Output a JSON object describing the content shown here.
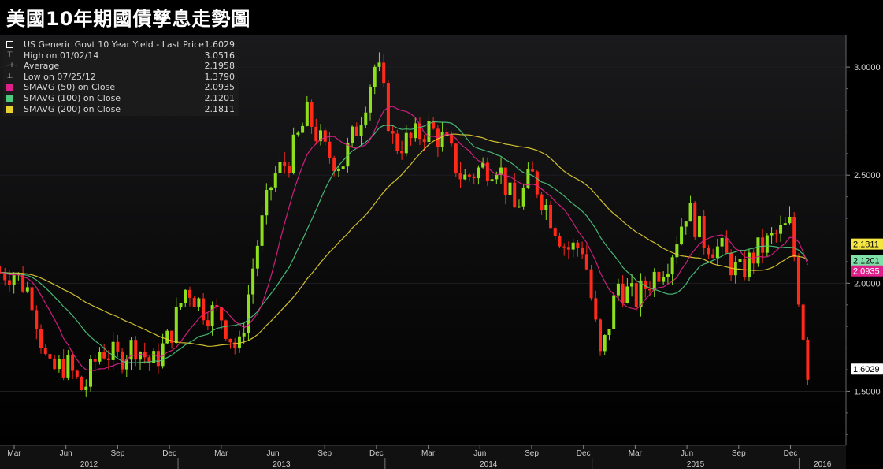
{
  "title": "美國10年期國債孳息走勢圖",
  "legend": [
    {
      "label": "US Generic Govt 10 Year Yield - Last Price",
      "value": "1.6029",
      "icon": "square-outline-icon",
      "color": "#ffffff"
    },
    {
      "label": "High on 01/02/14",
      "value": "3.0516",
      "icon": "high-marker-icon",
      "color": "#aaaaaa"
    },
    {
      "label": "Average",
      "value": "2.1958",
      "icon": "average-marker-icon",
      "color": "#aaaaaa"
    },
    {
      "label": "Low on 07/25/12",
      "value": "1.3790",
      "icon": "low-marker-icon",
      "color": "#aaaaaa"
    },
    {
      "label": "SMAVG (50) on Close",
      "value": "2.0935",
      "icon": "swatch-icon",
      "color": "#e0208a"
    },
    {
      "label": "SMAVG (100) on Close",
      "value": "2.1201",
      "icon": "swatch-icon",
      "color": "#4ec97f"
    },
    {
      "label": "SMAVG (200) on Close",
      "value": "2.1811",
      "icon": "swatch-icon",
      "color": "#e6d230"
    }
  ],
  "price_tags": [
    {
      "value": "2.1811",
      "bg": "#f5e642",
      "fg": "#000000"
    },
    {
      "value": "2.1201",
      "bg": "#7fe0a8",
      "fg": "#000000"
    },
    {
      "value": "2.0935",
      "bg": "#e0208a",
      "fg": "#ffffff"
    },
    {
      "value": "1.6029",
      "bg": "#ffffff",
      "fg": "#000000"
    }
  ],
  "chart_data": {
    "type": "candlestick",
    "x_start": "2012-03",
    "x_end": "2016-01",
    "y_range": [
      1.25,
      3.15
    ],
    "y_ticks": [
      "3.0000",
      "2.5000",
      "2.0000",
      "1.5000"
    ],
    "month_ticks": [
      "Mar",
      "Jun",
      "Sep",
      "Dec",
      "Mar",
      "Jun",
      "Sep",
      "Dec",
      "Mar",
      "Jun",
      "Sep",
      "Dec",
      "Mar",
      "Jun",
      "Sep",
      "Dec"
    ],
    "years": [
      "2012",
      "2013",
      "2014",
      "2015",
      "2016"
    ],
    "up_color": "#8ee01c",
    "down_color": "#ff2a1a",
    "close_monthly": [
      [
        "2012-03",
        2.05
      ],
      [
        "2012-04",
        1.95
      ],
      [
        "2012-05",
        1.58
      ],
      [
        "2012-06",
        1.63
      ],
      [
        "2012-07",
        1.5
      ],
      [
        "2012-08",
        1.7
      ],
      [
        "2012-09",
        1.65
      ],
      [
        "2012-10",
        1.72
      ],
      [
        "2012-11",
        1.62
      ],
      [
        "2012-12",
        1.75
      ],
      [
        "2013-01",
        1.99
      ],
      [
        "2013-02",
        1.88
      ],
      [
        "2013-03",
        1.85
      ],
      [
        "2013-04",
        1.67
      ],
      [
        "2013-05",
        2.15
      ],
      [
        "2013-06",
        2.49
      ],
      [
        "2013-07",
        2.58
      ],
      [
        "2013-08",
        2.78
      ],
      [
        "2013-09",
        2.61
      ],
      [
        "2013-10",
        2.55
      ],
      [
        "2013-11",
        2.75
      ],
      [
        "2013-12",
        3.03
      ],
      [
        "2014-01",
        2.64
      ],
      [
        "2014-02",
        2.66
      ],
      [
        "2014-03",
        2.72
      ],
      [
        "2014-04",
        2.65
      ],
      [
        "2014-05",
        2.48
      ],
      [
        "2014-06",
        2.53
      ],
      [
        "2014-07",
        2.56
      ],
      [
        "2014-08",
        2.34
      ],
      [
        "2014-09",
        2.5
      ],
      [
        "2014-10",
        2.33
      ],
      [
        "2014-11",
        2.16
      ],
      [
        "2014-12",
        2.17
      ],
      [
        "2015-01",
        1.64
      ],
      [
        "2015-02",
        2.0
      ],
      [
        "2015-03",
        1.92
      ],
      [
        "2015-04",
        2.03
      ],
      [
        "2015-05",
        2.12
      ],
      [
        "2015-06",
        2.35
      ],
      [
        "2015-07",
        2.2
      ],
      [
        "2015-08",
        2.15
      ],
      [
        "2015-09",
        2.04
      ],
      [
        "2015-10",
        2.14
      ],
      [
        "2015-11",
        2.21
      ],
      [
        "2015-12",
        2.27
      ],
      [
        "2016-01",
        1.6
      ]
    ],
    "last_price": 1.6029,
    "high": 3.0516,
    "average": 2.1958,
    "low": 1.379,
    "sma50": 2.0935,
    "sma100": 2.1201,
    "sma200": 2.1811
  }
}
